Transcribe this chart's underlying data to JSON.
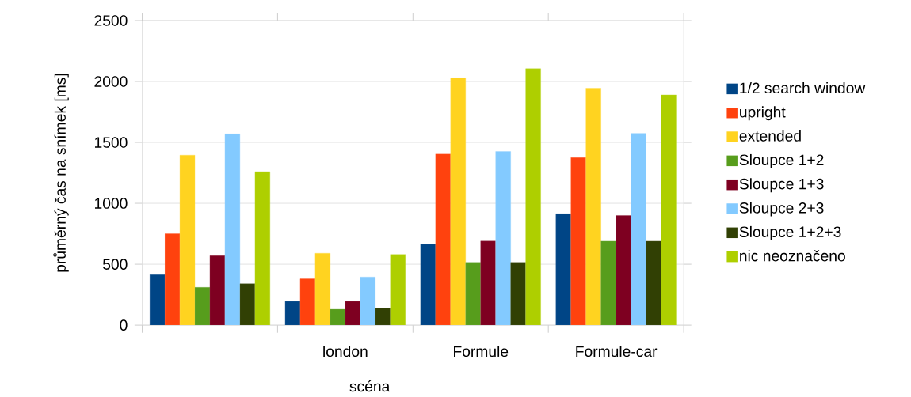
{
  "chart_data": {
    "type": "bar",
    "xlabel": "scéna",
    "ylabel": "průměrný čas na snímek [ms]",
    "categories": [
      null,
      "london",
      "Formule",
      "Formule-car"
    ],
    "series": [
      {
        "name": "1/2 search window",
        "color": "#004586",
        "values": [
          415,
          195,
          665,
          915
        ]
      },
      {
        "name": "upright",
        "color": "#ff420e",
        "values": [
          750,
          380,
          1405,
          1375
        ]
      },
      {
        "name": "extended",
        "color": "#ffd320",
        "values": [
          1395,
          590,
          2030,
          1945
        ]
      },
      {
        "name": "Sloupce 1+2",
        "color": "#579d1c",
        "values": [
          310,
          130,
          515,
          690
        ]
      },
      {
        "name": "Sloupce 1+3",
        "color": "#7e0021",
        "values": [
          570,
          195,
          690,
          900
        ]
      },
      {
        "name": "Sloupce 2+3",
        "color": "#83caff",
        "values": [
          1570,
          395,
          1425,
          1575
        ]
      },
      {
        "name": "Sloupce 1+2+3",
        "color": "#314004",
        "values": [
          340,
          140,
          515,
          690
        ]
      },
      {
        "name": "nic neoznačeno",
        "color": "#aecf00",
        "values": [
          1260,
          580,
          2105,
          1890
        ]
      }
    ],
    "ylim": [
      0,
      2500
    ],
    "yticks": [
      0,
      500,
      1000,
      1500,
      2000,
      2500
    ],
    "grid": "y",
    "legend": "right"
  }
}
